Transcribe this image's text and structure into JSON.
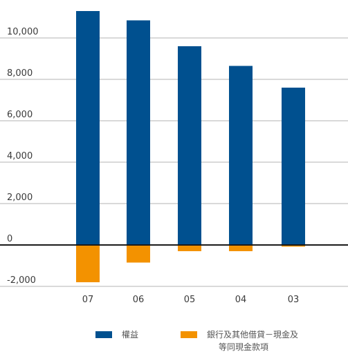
{
  "colors": {
    "equity": "#00508f",
    "borrowings": "#f39200",
    "grid": "#b3b3b3",
    "axis": "#1a1a1a"
  },
  "chart_data": {
    "type": "bar",
    "categories": [
      "07",
      "06",
      "05",
      "04",
      "03"
    ],
    "series": [
      {
        "name": "權益",
        "values": [
          11300,
          10850,
          9600,
          8650,
          7600
        ]
      },
      {
        "name": "銀行及其他借貸－現金及等同現金款項",
        "values": [
          -1800,
          -850,
          -300,
          -300,
          -80
        ]
      }
    ],
    "yticks": [
      -2000,
      0,
      2000,
      4000,
      6000,
      8000,
      10000
    ],
    "ytick_labels": [
      "-2,000",
      "0",
      "2,000",
      "4,000",
      "6,000",
      "8,000",
      "10,000"
    ],
    "ylim": [
      -2000,
      11400
    ],
    "grid": true,
    "legend_position": "bottom"
  },
  "legend": {
    "equity": "權益",
    "borrowings_line1": "銀行及其他借貸－現金及",
    "borrowings_line2": "等同現金款項"
  }
}
